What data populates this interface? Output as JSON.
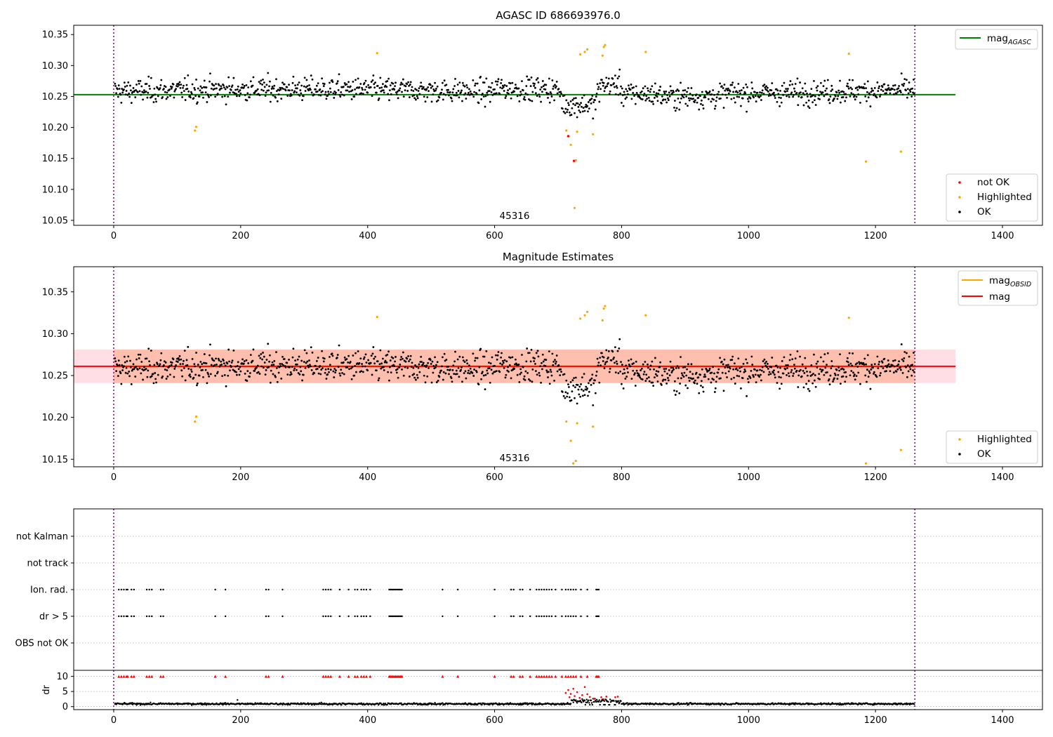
{
  "figure": {
    "obsid_annotation": "45316",
    "colors": {
      "ok": "#000000",
      "highlighted": "#ffa500",
      "not_ok": "#ff0000",
      "agasc_line": "#008000",
      "obsid_line": "#ffa500",
      "mag_line": "#ff0000",
      "band_mag": "#ffc0cb",
      "band_obsid": "#ffa07a",
      "vline": "#800080"
    }
  },
  "chart_data": [
    {
      "type": "scatter",
      "title": "AGASC ID 686693976.0",
      "xlim": [
        -63,
        1463
      ],
      "ylim": [
        10.042,
        10.365
      ],
      "xticks": [
        0,
        200,
        400,
        600,
        800,
        1000,
        1200,
        1400
      ],
      "yticks": [
        10.05,
        10.1,
        10.15,
        10.2,
        10.25,
        10.3,
        10.35
      ],
      "ytick_labels": [
        "10.05",
        "10.10",
        "10.15",
        "10.20",
        "10.25",
        "10.30",
        "10.35"
      ],
      "obsid_label_x": 632,
      "obs_boundaries": [
        0,
        1262
      ],
      "mag_agasc": 10.253,
      "mag_agasc_xrange": [
        -63,
        1326
      ],
      "legend_lines": [
        {
          "name": "mag",
          "sub": "AGASC",
          "color": "#008000"
        }
      ],
      "legend_points": [
        {
          "name": "not OK",
          "color": "#ff0000"
        },
        {
          "name": "Highlighted",
          "color": "#ffa500"
        },
        {
          "name": "OK",
          "color": "#000000"
        }
      ],
      "highlighted": [
        [
          128,
          10.195
        ],
        [
          130,
          10.201
        ],
        [
          415,
          10.32
        ],
        [
          713,
          10.195
        ],
        [
          720,
          10.172
        ],
        [
          726,
          10.07
        ],
        [
          728,
          10.147
        ],
        [
          730,
          10.193
        ],
        [
          735,
          10.318
        ],
        [
          742,
          10.322
        ],
        [
          746,
          10.326
        ],
        [
          755,
          10.189
        ],
        [
          770,
          10.316
        ],
        [
          772,
          10.33
        ],
        [
          774,
          10.333
        ],
        [
          838,
          10.322
        ],
        [
          1158,
          10.319
        ],
        [
          1185,
          10.145
        ],
        [
          1240,
          10.161
        ]
      ],
      "not_ok": [
        [
          716,
          10.186
        ],
        [
          725,
          10.146
        ]
      ]
    },
    {
      "type": "scatter",
      "title": "Magnitude Estimates",
      "xlim": [
        -63,
        1463
      ],
      "ylim": [
        10.141,
        10.38
      ],
      "xticks": [
        0,
        200,
        400,
        600,
        800,
        1000,
        1200,
        1400
      ],
      "yticks": [
        10.15,
        10.2,
        10.25,
        10.3,
        10.35
      ],
      "ytick_labels": [
        "10.15",
        "10.20",
        "10.25",
        "10.30",
        "10.35"
      ],
      "obsid_label_x": 632,
      "obs_boundaries": [
        0,
        1262
      ],
      "mag": 10.261,
      "mag_band": [
        10.241,
        10.281
      ],
      "mag_band_xrange": [
        -63,
        1326
      ],
      "mag_obsid": 10.261,
      "mag_obsid_band": [
        10.241,
        10.281
      ],
      "mag_obsid_xrange": [
        0,
        1262
      ],
      "legend_lines": [
        {
          "name": "mag",
          "sub": "OBSID",
          "color": "#ffa500"
        },
        {
          "name": "mag",
          "sub": "",
          "color": "#ff0000"
        }
      ],
      "legend_points": [
        {
          "name": "Highlighted",
          "color": "#ffa500"
        },
        {
          "name": "OK",
          "color": "#000000"
        }
      ],
      "highlighted": [
        [
          128,
          10.195
        ],
        [
          130,
          10.201
        ],
        [
          415,
          10.32
        ],
        [
          713,
          10.195
        ],
        [
          720,
          10.172
        ],
        [
          724,
          10.145
        ],
        [
          728,
          10.148
        ],
        [
          730,
          10.193
        ],
        [
          735,
          10.318
        ],
        [
          742,
          10.322
        ],
        [
          746,
          10.326
        ],
        [
          755,
          10.189
        ],
        [
          770,
          10.316
        ],
        [
          772,
          10.33
        ],
        [
          774,
          10.333
        ],
        [
          838,
          10.322
        ],
        [
          1158,
          10.319
        ],
        [
          1185,
          10.145
        ],
        [
          1240,
          10.161
        ]
      ]
    },
    {
      "type": "scatter",
      "title": "",
      "xlim": [
        -63,
        1463
      ],
      "categories": [
        "OBS not OK",
        "dr > 5",
        "Ion. rad.",
        "not track",
        "not Kalman"
      ],
      "flag_x": [
        8,
        12,
        16,
        20,
        22,
        28,
        32,
        52,
        56,
        60,
        74,
        78,
        160,
        176,
        240,
        244,
        266,
        330,
        334,
        338,
        342,
        356,
        370,
        380,
        384,
        390,
        394,
        398,
        404,
        434,
        436,
        438,
        440,
        442,
        444,
        446,
        448,
        450,
        452,
        454,
        518,
        542,
        600,
        626,
        630,
        640,
        644,
        656,
        666,
        670,
        674,
        678,
        682,
        686,
        690,
        696,
        706,
        712,
        716,
        720,
        724,
        728,
        736,
        746,
        760,
        762,
        764
      ]
    },
    {
      "type": "scatter",
      "title": "",
      "ylabel": "dr",
      "xlim": [
        -63,
        1463
      ],
      "ylim": [
        -1,
        12
      ],
      "xticks": [
        0,
        200,
        400,
        600,
        800,
        1000,
        1200,
        1400
      ],
      "yticks": [
        0,
        5,
        10
      ],
      "ytick_labels": [
        "0",
        "5",
        "10"
      ],
      "red_dr": [
        [
          712,
          4.5
        ],
        [
          716,
          5.5
        ],
        [
          718,
          3.1
        ],
        [
          720,
          4.2
        ],
        [
          724,
          5.9
        ],
        [
          726,
          3.5
        ],
        [
          730,
          4.8
        ],
        [
          734,
          2.9
        ],
        [
          738,
          3.8
        ],
        [
          742,
          6.5
        ],
        [
          746,
          4.1
        ],
        [
          750,
          3.2
        ],
        [
          756,
          2.6
        ],
        [
          768,
          3.1
        ],
        [
          772,
          2.4
        ],
        [
          776,
          3.3
        ],
        [
          790,
          3.1
        ],
        [
          794,
          3.3
        ]
      ]
    }
  ]
}
